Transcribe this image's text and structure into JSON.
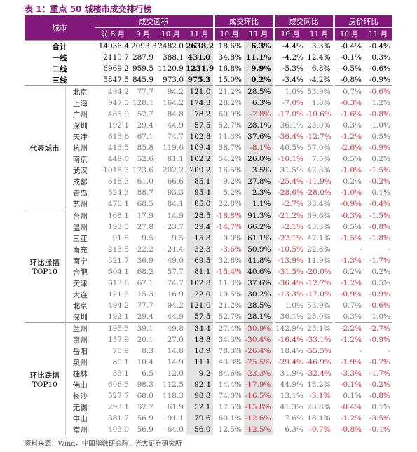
{
  "title": "表 1：重点 50 城楼市成交排行榜",
  "header": {
    "city": "城市",
    "groups": [
      {
        "label": "成交面积",
        "cols": [
          "前 8 月",
          "9 月",
          "10 月",
          "11 月"
        ]
      },
      {
        "label": "成交环比",
        "cols": [
          "10 月",
          "11 月"
        ]
      },
      {
        "label": "成交同比",
        "cols": [
          "10 月",
          "11 月"
        ]
      },
      {
        "label": "房价环比",
        "cols": [
          "10 月",
          "11 月"
        ]
      }
    ]
  },
  "summary": [
    [
      "合计",
      "14936.4",
      "2093.3",
      "2482.0",
      "2638.2",
      "18.6%",
      "6.3%",
      "-4.4%",
      "3.3%",
      "-0.4%",
      "-0.4%"
    ],
    [
      "一线",
      "2119.7",
      "287.9",
      "388.1",
      "431.0",
      "34.8%",
      "11.1%",
      "-4.2%",
      "12.4%",
      "-0.1%",
      "0.3%"
    ],
    [
      "二线",
      "6969.2",
      "959.5",
      "1120.9",
      "1231.9",
      "16.8%",
      "9.9%",
      "-5.3%",
      "6.8%",
      "-0.5%",
      "-0.6%"
    ],
    [
      "三线",
      "5847.5",
      "845.9",
      "973.0",
      "975.3",
      "15.0%",
      "0.2%",
      "-3.4%",
      "-4.2%",
      "-0.8%",
      "-0.9%"
    ]
  ],
  "sections": [
    {
      "label": [
        "代表城市"
      ],
      "rows": [
        [
          "北京",
          "494.2",
          "77.7",
          "94.2",
          "121.0",
          "21.2%",
          "28.5%",
          "1.0%",
          "53.9%",
          "0.7%",
          "-0.6%"
        ],
        [
          "上海",
          "947.5",
          "128.1",
          "164.2",
          "174.3",
          "28.2%",
          "6.3%",
          "-7.0%",
          "1.8%",
          "-0.3%",
          "1.2%"
        ],
        [
          "广州",
          "485.9",
          "52.7",
          "84.8",
          "78.2",
          "60.9%",
          "-7.8%",
          "-17.0%",
          "-10.6%",
          "-1.6%",
          "-0.8%"
        ],
        [
          "深圳",
          "192.1",
          "29.4",
          "44.9",
          "57.5",
          "52.7%",
          "28.1%",
          "36.1%",
          "25.0%",
          "0.3%",
          "1.0%"
        ],
        [
          "天津",
          "613.6",
          "67.1",
          "74.7",
          "102.8",
          "11.3%",
          "37.6%",
          "-36.4%",
          "-12.7%",
          "-1.2%",
          "0.5%"
        ],
        [
          "杭州",
          "413.5",
          "85.8",
          "119.0",
          "109.4",
          "38.7%",
          "-8.1%",
          "40.5%",
          "57.0%",
          "-2.6%",
          "-0.9%"
        ],
        [
          "南京",
          "449.0",
          "52.6",
          "81.1",
          "102.2",
          "54.2%",
          "26.0%",
          "-10.1%",
          "7.5%",
          "0.5%",
          "0.2%"
        ],
        [
          "武汉",
          "1018.3",
          "173.6",
          "202.2",
          "209.2",
          "16.5%",
          "3.5%",
          "31.5%",
          "42.3%",
          "-1.0%",
          "-1.5%"
        ],
        [
          "成都",
          "618.3",
          "61.0",
          "66.6",
          "85.1",
          "9.2%",
          "27.8%",
          "-25.4%",
          "-11.9%",
          "0.2%",
          "-0.2%"
        ],
        [
          "青岛",
          "524.3",
          "88.7",
          "93.3",
          "95.4",
          "5.2%",
          "2.3%",
          "-28.6%",
          "-28.0%",
          "-1.0%",
          "0.1%"
        ],
        [
          "苏州",
          "476.1",
          "68.5",
          "84.1",
          "85.0",
          "22.8%",
          "1.1%",
          "-2.7%",
          "33.4%",
          "-0.9%",
          "-0.4%"
        ]
      ]
    },
    {
      "label": [
        "环比涨幅",
        "TOP10"
      ],
      "rows": [
        [
          "台州",
          "168.1",
          "17.9",
          "14.9",
          "28.5",
          "-16.8%",
          "91.3%",
          "-21.2%",
          "69.6%",
          "-0.3%",
          "-1.5%"
        ],
        [
          "温州",
          "193.5",
          "27.8",
          "23.7",
          "39.4",
          "-14.7%",
          "66.2%",
          "-2.1%",
          "43.3%",
          "0.5%",
          "-0.8%"
        ],
        [
          "三亚",
          "91.5",
          "9.5",
          "9.5",
          "15.3",
          "0.0%",
          "61.1%",
          "-22.1%",
          "47.1%",
          "-1.5%",
          "-1.8%"
        ],
        [
          "南充",
          "213.5",
          "22.2",
          "21.4",
          "32.3",
          "-3.6%",
          "50.9%",
          "-10.5%",
          "22.8%",
          "-",
          "-"
        ],
        [
          "南宁",
          "321.7",
          "36.9",
          "49.0",
          "69.5",
          "32.8%",
          "41.8%",
          "-13.9%",
          "11.9%",
          "-1.3%",
          "-1.7%"
        ],
        [
          "合肥",
          "604.1",
          "68.2",
          "57.7",
          "81.1",
          "-15.4%",
          "40.6%",
          "-31.5%",
          "-20.0%",
          "0.2%",
          "0.2%"
        ],
        [
          "天津",
          "613.6",
          "67.1",
          "74.7",
          "102.8",
          "11.3%",
          "37.6%",
          "-36.4%",
          "-12.7%",
          "-1.2%",
          "0.5%"
        ],
        [
          "大连",
          "121.3",
          "15.3",
          "16.9",
          "22.0",
          "10.5%",
          "30.2%",
          "-13.3%",
          "-17.0%",
          "-0.9%",
          "-0.9%"
        ],
        [
          "北京",
          "494.2",
          "77.7",
          "94.2",
          "121.0",
          "21.2%",
          "28.5%",
          "1.0%",
          "53.9%",
          "0.7%",
          "-0.6%"
        ],
        [
          "深圳",
          "192.1",
          "29.4",
          "44.9",
          "57.5",
          "52.7%",
          "28.1%",
          "36.1%",
          "25.0%",
          "0.3%",
          "1.0%"
        ]
      ]
    },
    {
      "label": [
        "环比跌幅",
        "TOP10"
      ],
      "rows": [
        [
          "兰州",
          "195.3",
          "39.1",
          "49.8",
          "34.4",
          "27.4%",
          "-30.9%",
          "142.9%",
          "25.1%",
          "-2.2%",
          "-2.7%"
        ],
        [
          "惠州",
          "157.9",
          "20.1",
          "27.0",
          "18.8",
          "34.3%",
          "-30.4%",
          "-16.4%",
          "-33.1%",
          "-1.2%",
          "-0.9%"
        ],
        [
          "岳阳",
          "70.9",
          "8.3",
          "14.8",
          "10.9",
          "78.3%",
          "-26.4%",
          "18.4%",
          "-55.5%",
          "-",
          "-"
        ],
        [
          "泉州",
          "80.1",
          "10.4",
          "14.9",
          "11.1",
          "43.3%",
          "-25.5%",
          "-29.4%",
          "-46.9%",
          "-1.9%",
          "-0.7%"
        ],
        [
          "桂林",
          "53.1",
          "6.5",
          "12.0",
          "9.2",
          "84.6%",
          "-23.3%",
          "31.9%",
          "-32.4%",
          "-3.3%",
          "-1.7%"
        ],
        [
          "佛山",
          "606.3",
          "98.3",
          "112.5",
          "92.4",
          "14.4%",
          "-17.9%",
          "44.9%",
          "18.2%",
          "-0.1%",
          "-0.2%"
        ],
        [
          "长沙",
          "527.7",
          "68.0",
          "118.3",
          "98.8",
          "74.0%",
          "-16.5%",
          "13.1%",
          "-3.1%",
          "0.1%",
          "-0.8%"
        ],
        [
          "无锡",
          "293.1",
          "52.7",
          "61.9",
          "52.1",
          "17.5%",
          "-15.8%",
          "41.3%",
          "23.8%",
          "-0.4%",
          "0.1%"
        ],
        [
          "中山",
          "381.7",
          "56.9",
          "91.1",
          "79.6",
          "60.1%",
          "-12.6%",
          "7.6%",
          "18.1%",
          "-1.2%",
          "-3.5%"
        ],
        [
          "常州",
          "403.0",
          "56.9",
          "64.0",
          "56.0",
          "12.5%",
          "-12.5%",
          "6.3%",
          "-0.7%",
          "-0.8%",
          "-0.1%"
        ]
      ]
    }
  ],
  "source": "资料来源：Wind，中国指数研究院，光大证券研究所"
}
